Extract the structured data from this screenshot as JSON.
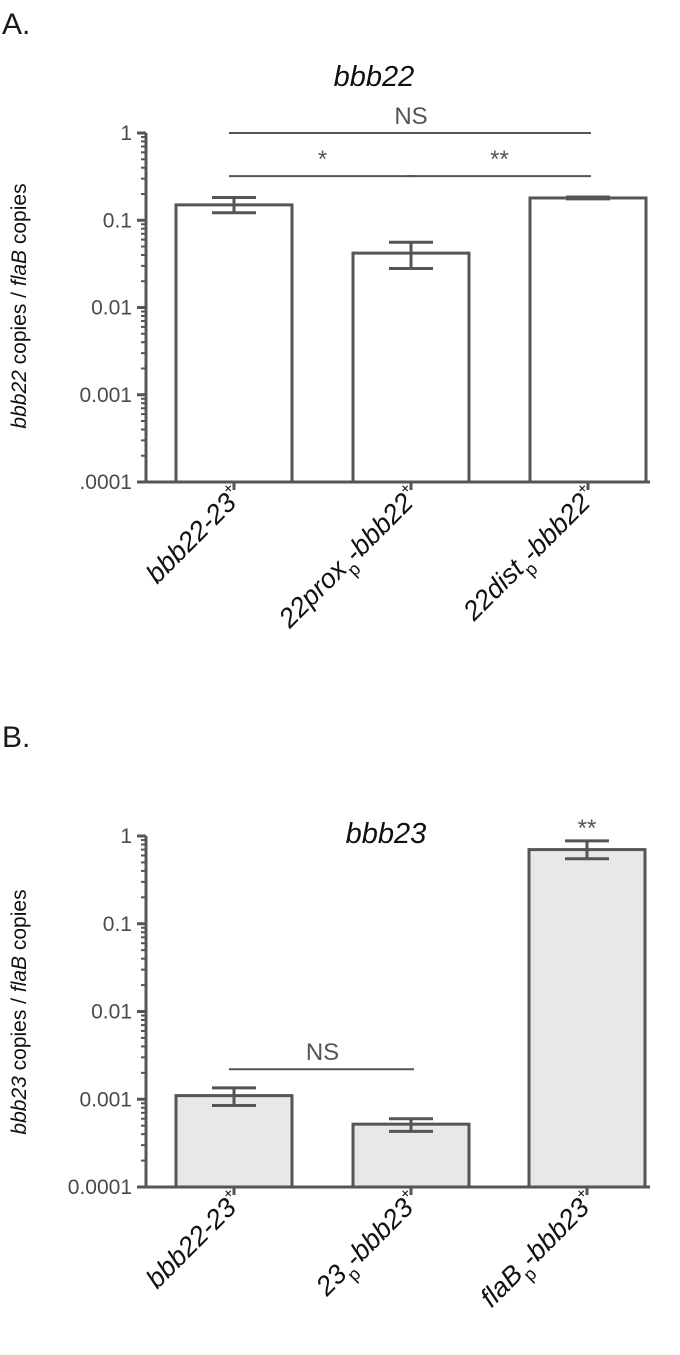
{
  "panels": [
    {
      "label": "A."
    },
    {
      "label": "B."
    }
  ],
  "chart_data": [
    {
      "type": "bar",
      "title": "bbb22",
      "ylabel": {
        "parts": [
          {
            "text": "bbb22",
            "italic": true
          },
          {
            "text": " copies / ",
            "italic": false
          },
          {
            "text": "flaB",
            "italic": true
          },
          {
            "text": " copies",
            "italic": false
          }
        ]
      },
      "yscale": "log",
      "ylim": [
        0.0001,
        1
      ],
      "yticks": [
        0.0001,
        0.001,
        0.01,
        0.1,
        1
      ],
      "ytick_labels": [
        ".0001",
        "0.001",
        "0.01",
        "0.1",
        "1"
      ],
      "categories": [
        {
          "main": "bbb22-23",
          "sub": "",
          "suffix": "",
          "sup": "+"
        },
        {
          "main": "22prox",
          "sub": "p",
          "suffix": "-bbb22",
          "sup": "+"
        },
        {
          "main": "22dist",
          "sub": "p",
          "suffix": "-bbb22",
          "sup": "+"
        }
      ],
      "values": [
        0.15,
        0.042,
        0.18
      ],
      "error_low": [
        0.122,
        0.028,
        0.176
      ],
      "error_high": [
        0.182,
        0.056,
        0.185
      ],
      "bar_color": "#ffffff",
      "edge_color": "#555555",
      "significance": [
        {
          "label": "NS",
          "from": 0,
          "to": 2,
          "level": 1.0
        },
        {
          "label": "*",
          "from": 0,
          "to": 1,
          "level": 0.32
        },
        {
          "label": "**",
          "from": 1,
          "to": 2,
          "level": 0.32
        }
      ]
    },
    {
      "type": "bar",
      "title": "bbb23",
      "ylabel": {
        "parts": [
          {
            "text": "bbb23",
            "italic": true
          },
          {
            "text": " copies / ",
            "italic": false
          },
          {
            "text": "flaB",
            "italic": true
          },
          {
            "text": " copies",
            "italic": false
          }
        ]
      },
      "yscale": "log",
      "ylim": [
        0.0001,
        1
      ],
      "yticks": [
        0.0001,
        0.001,
        0.01,
        0.1,
        1
      ],
      "ytick_labels": [
        "0.0001",
        "0.001",
        "0.01",
        "0.1",
        "1"
      ],
      "categories": [
        {
          "main": "bbb22-23",
          "sub": "",
          "suffix": "",
          "sup": "+"
        },
        {
          "main": "23",
          "sub": "p",
          "suffix": "-bbb23",
          "sup": "+"
        },
        {
          "main": "flaB",
          "sub": "p",
          "suffix": "-bbb23",
          "sup": "+"
        }
      ],
      "values": [
        0.0011,
        0.00052,
        0.7
      ],
      "error_low": [
        0.00085,
        0.00043,
        0.55
      ],
      "error_high": [
        0.00135,
        0.0006,
        0.88
      ],
      "bar_color": "#e8e8e8",
      "edge_color": "#555555",
      "significance": [
        {
          "label": "NS",
          "from": 0,
          "to": 1,
          "level": 0.0022
        },
        {
          "label": "**",
          "over": 2
        }
      ]
    }
  ]
}
